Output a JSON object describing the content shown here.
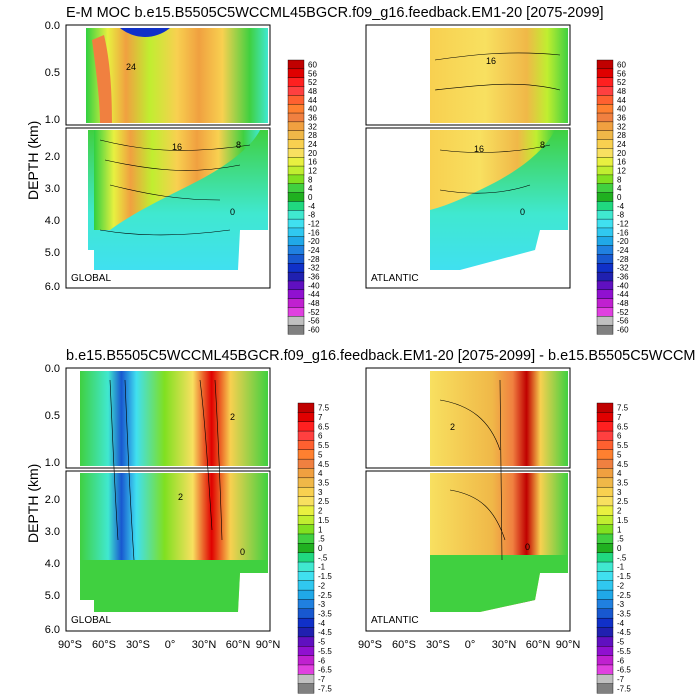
{
  "titles": {
    "top": "E-M MOC  b.e15.B5505C5WCCML45BGCR.f09_g16.feedback.EM1-20 [2075-2099]",
    "bottom": "b.e15.B5505C5WCCML45BGCR.f09_g16.feedback.EM1-20 [2075-2099] - b.e15.B5505C5WCCM"
  },
  "chart_data": [
    {
      "type": "heatmap",
      "name": "top-global",
      "title": "E-M MOC  b.e15.B5505C5WCCML45BGCR.f09_g16.feedback.EM1-20 [2075-2099]",
      "label": "GLOBAL",
      "ylabel": "DEPTH (km)",
      "xlim": [
        -90,
        90
      ],
      "ylim_upper": [
        0,
        1
      ],
      "ylim_lower": [
        1,
        6
      ],
      "y_ticks_upper": [
        "0.0",
        "0.5",
        "1.0"
      ],
      "y_ticks_lower": [
        "2.0",
        "3.0",
        "4.0",
        "5.0",
        "6.0"
      ],
      "contour_labels": [
        "16",
        "24",
        "8",
        "0"
      ]
    },
    {
      "type": "heatmap",
      "name": "top-atlantic",
      "label": "ATLANTIC",
      "xlim": [
        -90,
        90
      ],
      "contour_labels": [
        "16",
        "16",
        "8",
        "0"
      ],
      "colorbar": {
        "labels": [
          "60",
          "56",
          "52",
          "48",
          "44",
          "40",
          "36",
          "32",
          "28",
          "24",
          "20",
          "16",
          "12",
          "8",
          "4",
          "0",
          "-4",
          "-8",
          "-12",
          "-16",
          "-20",
          "-24",
          "-28",
          "-32",
          "-36",
          "-40",
          "-44",
          "-48",
          "-52",
          "-56",
          "-60"
        ]
      }
    },
    {
      "type": "heatmap",
      "name": "bottom-global",
      "title": "b.e15.B5505C5WCCML45BGCR.f09_g16.feedback.EM1-20 [2075-2099] - b.e15.B5505C5WCCM",
      "label": "GLOBAL",
      "ylabel": "DEPTH (km)",
      "xlim": [
        -90,
        90
      ],
      "x_ticks": [
        "90°S",
        "60°S",
        "30°S",
        "0°",
        "30°N",
        "60°N",
        "90°N"
      ],
      "y_ticks_upper": [
        "0.0",
        "0.5",
        "1.0"
      ],
      "y_ticks_lower": [
        "2.0",
        "3.0",
        "4.0",
        "5.0",
        "6.0"
      ],
      "contour_labels": [
        "2",
        "2",
        "0"
      ]
    },
    {
      "type": "heatmap",
      "name": "bottom-atlantic",
      "label": "ATLANTIC",
      "xlim": [
        -90,
        90
      ],
      "x_ticks": [
        "90°S",
        "60°S",
        "30°S",
        "0°",
        "30°N",
        "60°N",
        "90°N"
      ],
      "contour_labels": [
        "2",
        "0"
      ],
      "colorbar": {
        "labels": [
          "7.5",
          "7",
          "6.5",
          "6",
          "5.5",
          "5",
          "4.5",
          "4",
          "3.5",
          "3",
          "2.5",
          "2",
          "1.5",
          "1",
          ".5",
          "0",
          "-.5",
          "-1",
          "-1.5",
          "-2",
          "-2.5",
          "-3",
          "-3.5",
          "-4",
          "-4.5",
          "-5",
          "-5.5",
          "-6",
          "-6.5",
          "-7",
          "-7.5"
        ]
      }
    }
  ],
  "palette": [
    "#c00000",
    "#e00000",
    "#ff2020",
    "#ff4040",
    "#ff6030",
    "#ff8030",
    "#f08040",
    "#f0a040",
    "#f0b848",
    "#f8d050",
    "#f8e060",
    "#e8f040",
    "#c0ee30",
    "#80e020",
    "#40d040",
    "#20b020",
    "#20d880",
    "#40e8d0",
    "#40e0f0",
    "#30c8f0",
    "#20a8e8",
    "#2080e0",
    "#1858d0",
    "#1030c8",
    "#2020b0",
    "#6010c0",
    "#9010d0",
    "#c020d0",
    "#e040e0",
    "#c0c0c0",
    "#808080"
  ]
}
